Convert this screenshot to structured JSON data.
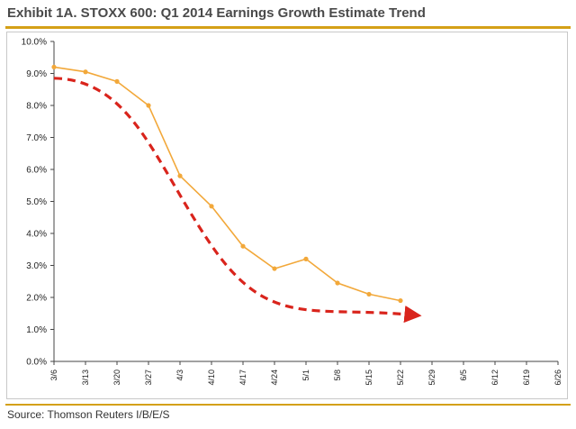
{
  "header": {
    "title": "Exhibit 1A.  STOXX 600: Q1 2014 Earnings Growth Estimate Trend"
  },
  "footer": {
    "source": "Source: Thomson Reuters I/B/E/S"
  },
  "colors": {
    "accent": "#d4a017",
    "series_line": "#f2a83a",
    "trend_arrow": "#d9241c",
    "axis": "#444444"
  },
  "chart_data": {
    "type": "line",
    "title": "STOXX 600: Q1 2014 Earnings Growth Estimate Trend",
    "xlabel": "",
    "ylabel": "",
    "ylim": [
      0,
      10
    ],
    "y_ticks": [
      "0.0%",
      "1.0%",
      "2.0%",
      "3.0%",
      "4.0%",
      "5.0%",
      "6.0%",
      "7.0%",
      "8.0%",
      "9.0%",
      "10.0%"
    ],
    "categories": [
      "3/6",
      "3/13",
      "3/20",
      "3/27",
      "4/3",
      "4/10",
      "4/17",
      "4/24",
      "5/1",
      "5/8",
      "5/15",
      "5/22",
      "5/29",
      "6/5",
      "6/12",
      "6/19",
      "6/26"
    ],
    "series": [
      {
        "name": "Q1 2014 Earnings Growth Estimate",
        "values": [
          9.2,
          9.05,
          8.75,
          8.0,
          5.8,
          4.85,
          3.6,
          2.9,
          3.2,
          2.45,
          2.1,
          1.9,
          null,
          null,
          null,
          null,
          null
        ]
      }
    ],
    "annotations": [
      {
        "type": "trend-arrow",
        "style": "dashed",
        "from_category": "3/6",
        "to_category": "5/22",
        "from_value": 8.85,
        "to_value": 1.45
      }
    ],
    "grid": false,
    "legend": "none"
  }
}
